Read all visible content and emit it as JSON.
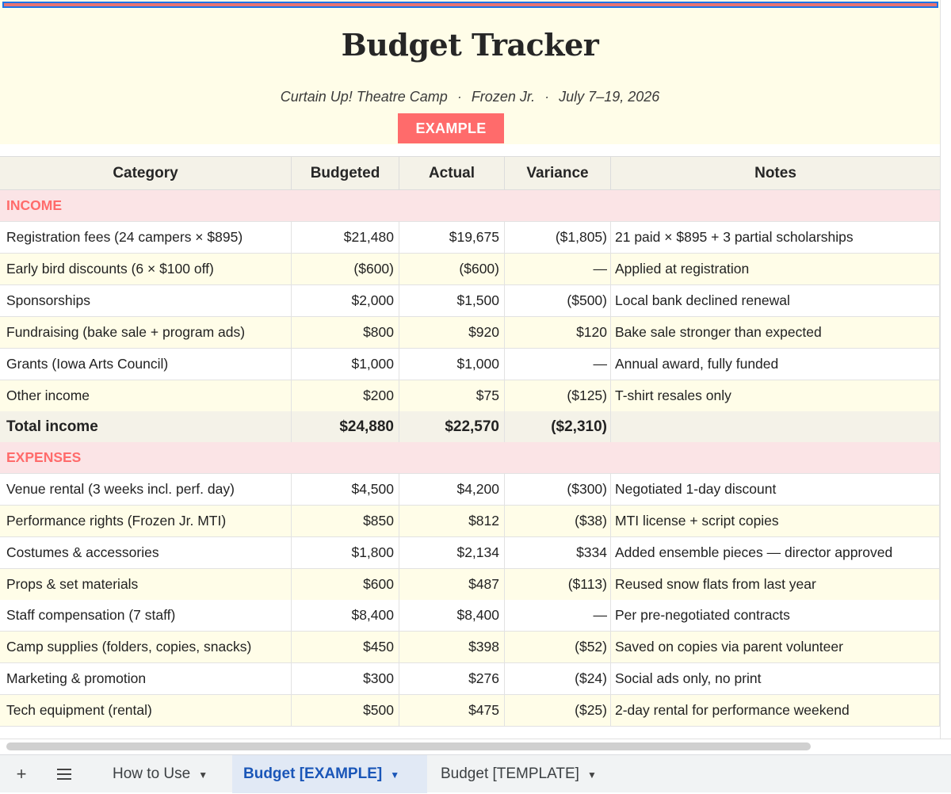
{
  "header": {
    "title": "Budget Tracker",
    "org": "Curtain Up! Theatre Camp",
    "dot1": "·",
    "show": "Frozen Jr.",
    "dot2": "·",
    "dates": "July 7–19, 2026",
    "badge": "EXAMPLE"
  },
  "columns": {
    "category": "Category",
    "budgeted": "Budgeted",
    "actual": "Actual",
    "variance": "Variance",
    "notes": "Notes"
  },
  "income": {
    "label": "INCOME",
    "rows": [
      {
        "category": "Registration fees (24 campers × $895)",
        "budgeted": "$21,480",
        "actual": "$19,675",
        "variance": "($1,805)",
        "notes": "21 paid × $895 + 3 partial scholarships"
      },
      {
        "category": "Early bird discounts (6 × $100 off)",
        "budgeted": "($600)",
        "actual": "($600)",
        "variance": "—",
        "notes": "Applied at registration"
      },
      {
        "category": "Sponsorships",
        "budgeted": "$2,000",
        "actual": "$1,500",
        "variance": "($500)",
        "notes": "Local bank declined renewal"
      },
      {
        "category": "Fundraising (bake sale + program ads)",
        "budgeted": "$800",
        "actual": "$920",
        "variance": "$120",
        "notes": "Bake sale stronger than expected"
      },
      {
        "category": "Grants (Iowa Arts Council)",
        "budgeted": "$1,000",
        "actual": "$1,000",
        "variance": "—",
        "notes": "Annual award, fully funded"
      },
      {
        "category": "Other income",
        "budgeted": "$200",
        "actual": "$75",
        "variance": "($125)",
        "notes": "T-shirt resales only"
      }
    ],
    "total": {
      "category": "Total income",
      "budgeted": "$24,880",
      "actual": "$22,570",
      "variance": "($2,310)",
      "notes": ""
    }
  },
  "expenses": {
    "label": "EXPENSES",
    "rows": [
      {
        "category": "Venue rental (3 weeks incl. perf. day)",
        "budgeted": "$4,500",
        "actual": "$4,200",
        "variance": "($300)",
        "notes": "Negotiated 1-day discount"
      },
      {
        "category": "Performance rights (Frozen Jr. MTI)",
        "budgeted": "$850",
        "actual": "$812",
        "variance": "($38)",
        "notes": "MTI license + script copies"
      },
      {
        "category": "Costumes & accessories",
        "budgeted": "$1,800",
        "actual": "$2,134",
        "variance": "$334",
        "notes": "Added ensemble pieces — director approved"
      },
      {
        "category": "Props & set materials",
        "budgeted": "$600",
        "actual": "$487",
        "variance": "($113)",
        "notes": "Reused snow flats from last year"
      },
      {
        "category": "Staff compensation (7 staff)",
        "budgeted": "$8,400",
        "actual": "$8,400",
        "variance": "—",
        "notes": "Per pre-negotiated contracts"
      },
      {
        "category": "Camp supplies (folders, copies, snacks)",
        "budgeted": "$450",
        "actual": "$398",
        "variance": "($52)",
        "notes": "Saved on copies via parent volunteer"
      },
      {
        "category": "Marketing & promotion",
        "budgeted": "$300",
        "actual": "$276",
        "variance": "($24)",
        "notes": "Social ads only, no print"
      },
      {
        "category": "Tech equipment (rental)",
        "budgeted": "$500",
        "actual": "$475",
        "variance": "($25)",
        "notes": "2-day rental for performance weekend"
      }
    ]
  },
  "tabs": {
    "add_icon": "+",
    "menu_icon": "sheet-list-icon",
    "items": [
      {
        "label": "How to Use",
        "active": false
      },
      {
        "label": "Budget [EXAMPLE]",
        "active": true
      },
      {
        "label": "Budget [TEMPLATE]",
        "active": false
      }
    ]
  },
  "colors": {
    "accent": "#ff6b6b",
    "header_bg": "#fffde8",
    "section_bg": "#fbe4e6",
    "active_tab": "#1a56b8"
  }
}
